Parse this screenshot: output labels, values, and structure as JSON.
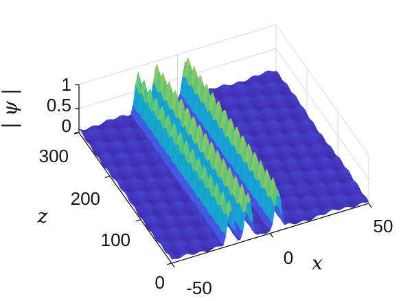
{
  "chart_data": {
    "type": "surface",
    "xlabel": "x",
    "ylabel": "z",
    "zlabel": "| ψ |",
    "xlim": [
      -50,
      50
    ],
    "ylim": [
      0,
      300
    ],
    "zlim": [
      0,
      1
    ],
    "x_ticks": [
      "-50",
      "0",
      "50"
    ],
    "y_ticks": [
      "0",
      "100",
      "200",
      "300"
    ],
    "z_ticks": [
      "0",
      "0.5",
      "1"
    ],
    "grid": true,
    "colormap": [
      "#3e26a8",
      "#4752e0",
      "#2c7ef0",
      "#14a2d3",
      "#1fbaa6",
      "#55c682",
      "#a8c54e",
      "#ecbb32"
    ],
    "peaks": [
      {
        "x": -20,
        "amplitude": 0.9
      },
      {
        "x": -11,
        "amplitude": 1.0
      },
      {
        "x": 4,
        "amplitude": 1.0
      }
    ],
    "background_level": 0.1
  }
}
